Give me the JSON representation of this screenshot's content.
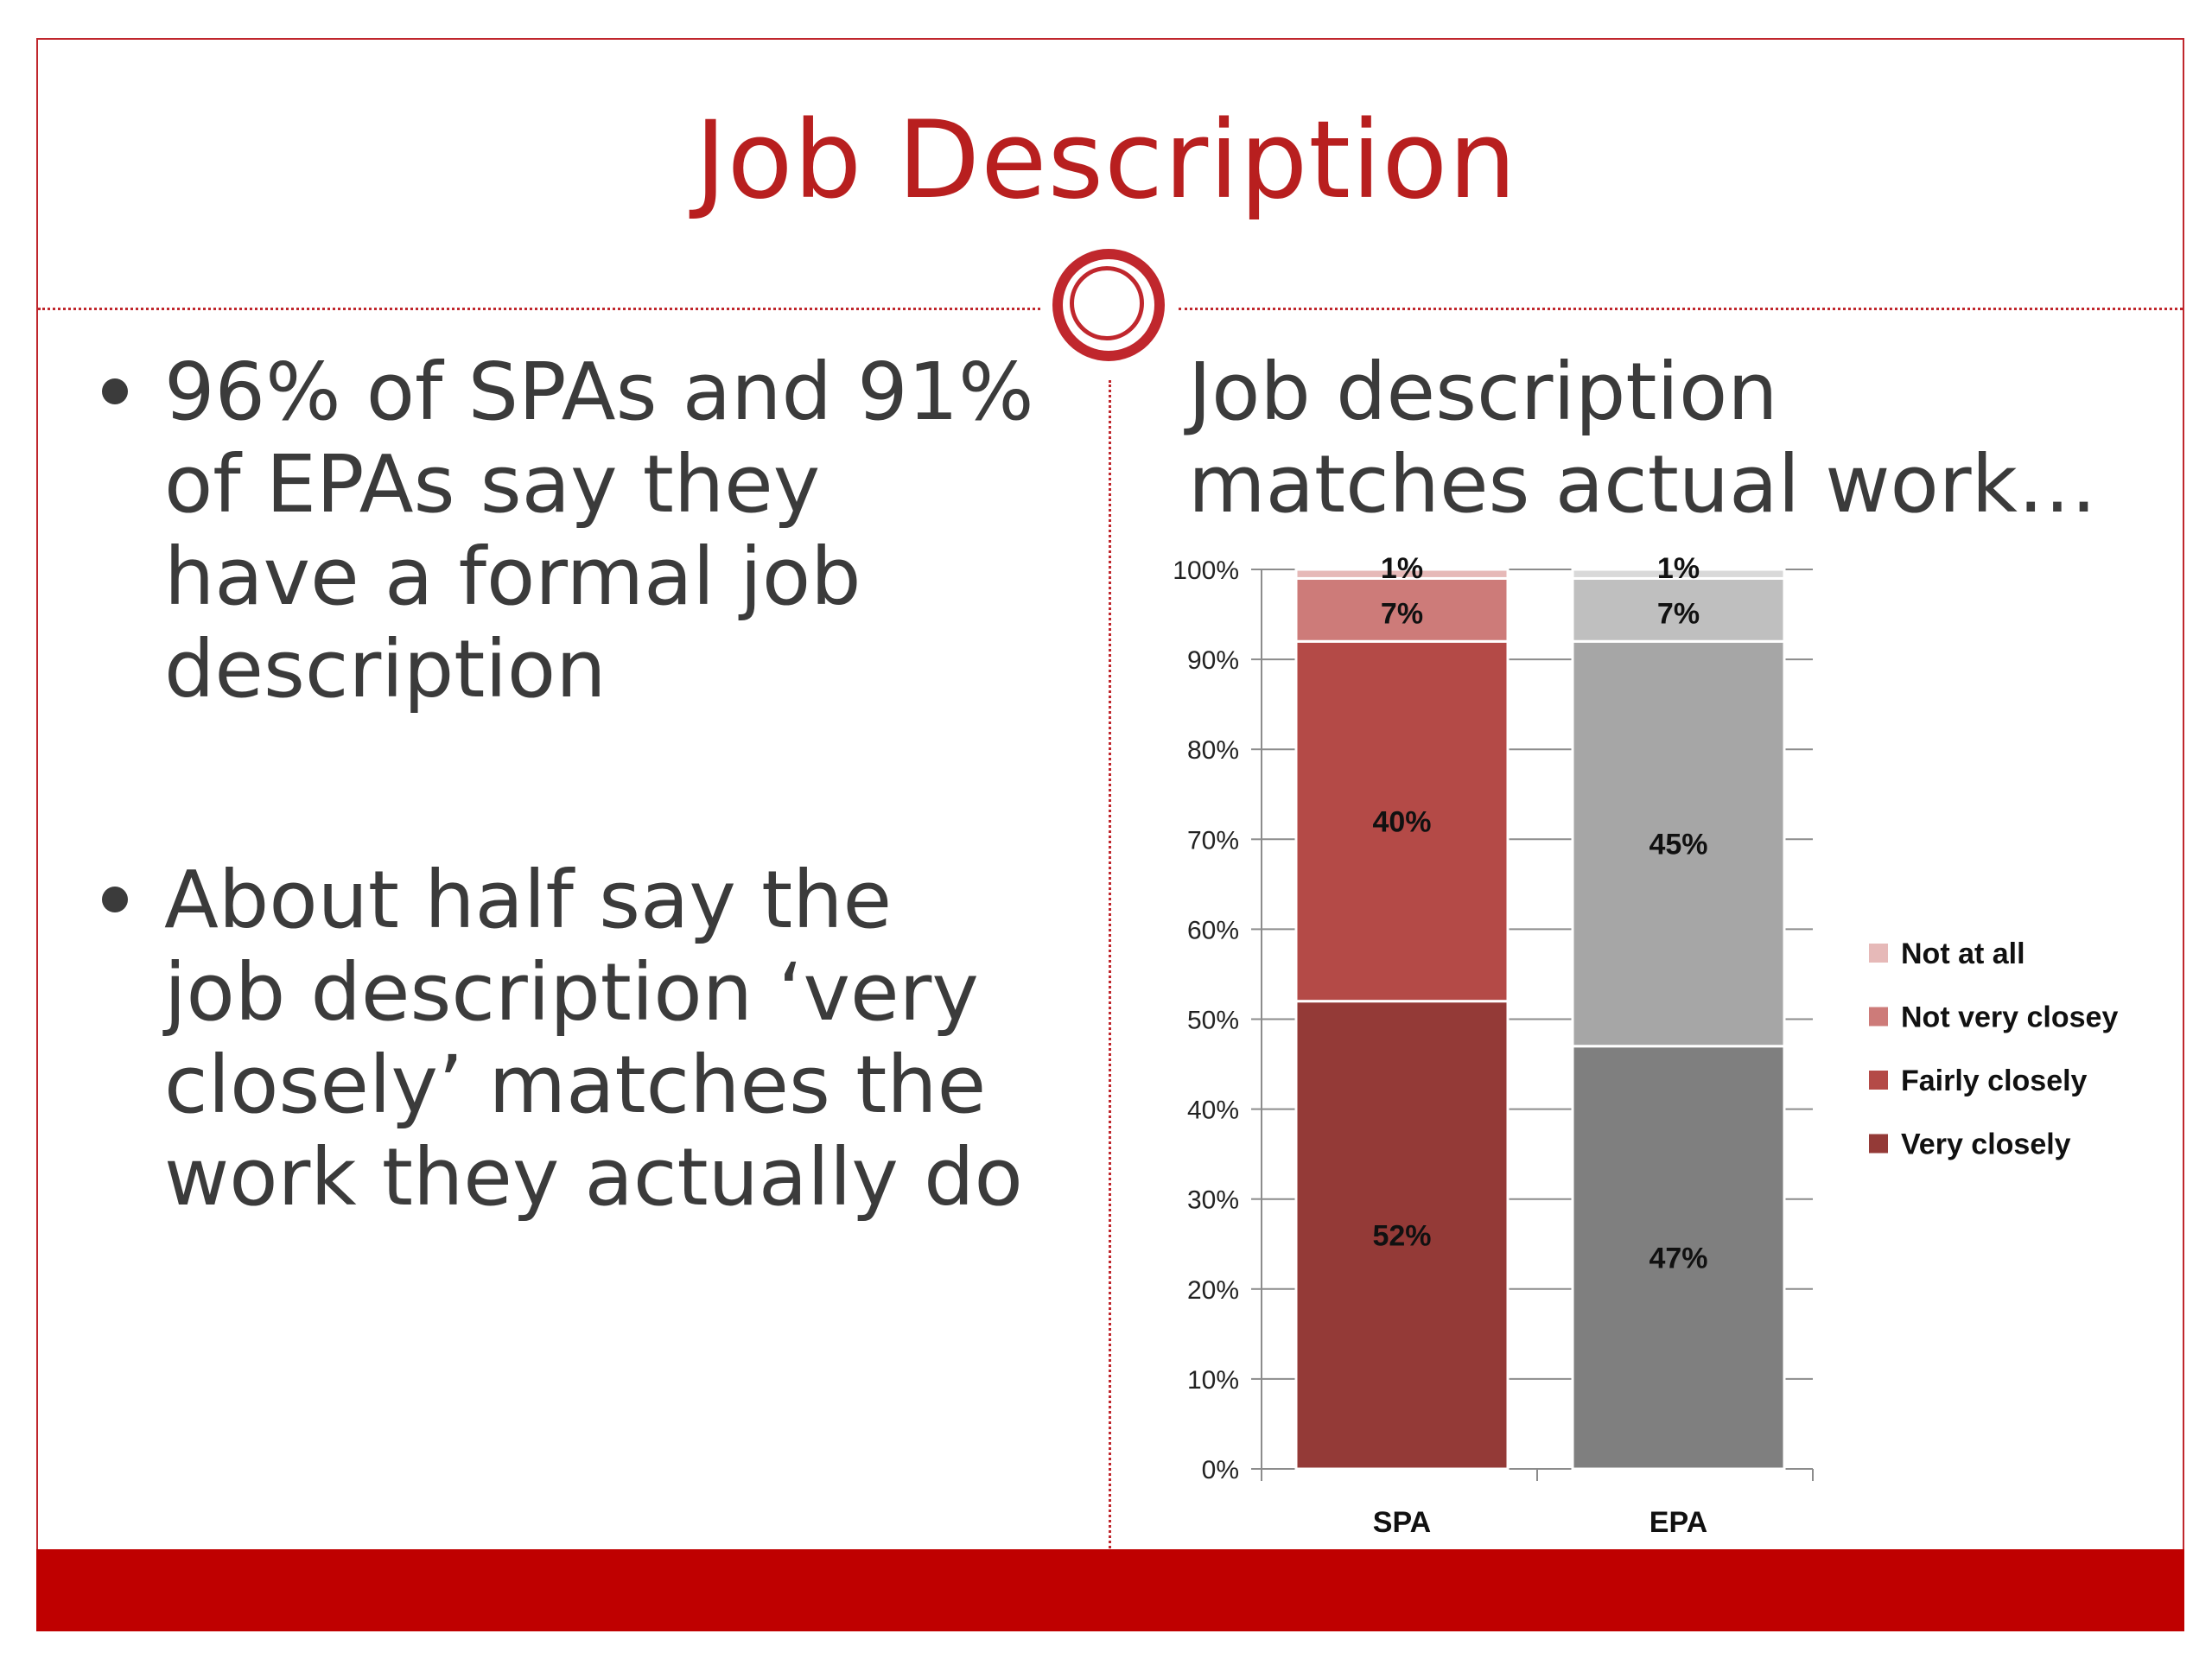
{
  "slide": {
    "title": "Job Description",
    "bullets": [
      "96% of SPAs and 91% of EPAs say they have a formal job description",
      "About half say the job description ‘very closely’ matches the work they actually do"
    ],
    "chart_heading": "Job description matches actual work…",
    "accent_color": "#c0272d",
    "footer_color": "#bf0000"
  },
  "chart_data": {
    "type": "bar",
    "stacked": true,
    "categories": [
      "SPA",
      "EPA"
    ],
    "series": [
      {
        "name": "Very closely",
        "values": [
          52,
          47
        ],
        "labels": [
          "52%",
          "47%"
        ]
      },
      {
        "name": "Fairly closely",
        "values": [
          40,
          45
        ],
        "labels": [
          "40%",
          "45%"
        ]
      },
      {
        "name": "Not very closey",
        "values": [
          7,
          7
        ],
        "labels": [
          "7%",
          "7%"
        ]
      },
      {
        "name": "Not at all",
        "values": [
          1,
          1
        ],
        "labels": [
          "1%",
          "1%"
        ]
      }
    ],
    "colors": {
      "SPA": [
        "#943a37",
        "#b44a47",
        "#cd7b79",
        "#e6b9b8"
      ],
      "EPA": [
        "#7f7f7f",
        "#a6a6a6",
        "#bfbfbf",
        "#d9d9d9"
      ]
    },
    "legend_colors": [
      "#e6b9b8",
      "#cd7b79",
      "#b44a47",
      "#943a37"
    ],
    "legend_order": [
      "Not at all",
      "Not very closey",
      "Fairly closely",
      "Very closely"
    ],
    "legend_position": "right",
    "y_ticks": [
      "0%",
      "10%",
      "20%",
      "30%",
      "40%",
      "50%",
      "60%",
      "70%",
      "80%",
      "90%",
      "100%"
    ],
    "ylim": [
      0,
      100
    ],
    "grid": true
  }
}
